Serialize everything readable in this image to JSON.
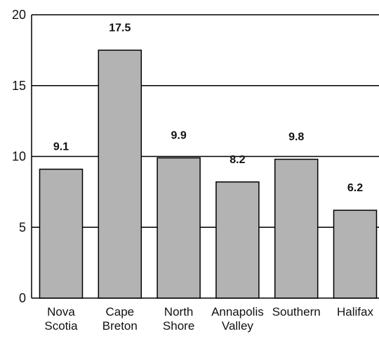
{
  "chart_data": {
    "type": "bar",
    "categories": [
      [
        "Nova",
        "Scotia"
      ],
      [
        "Cape",
        "Breton"
      ],
      [
        "North",
        "Shore"
      ],
      [
        "Annapolis",
        "Valley"
      ],
      [
        "Southern"
      ],
      [
        "Halifax"
      ]
    ],
    "values": [
      9.1,
      17.5,
      9.9,
      8.2,
      9.8,
      6.2
    ],
    "data_labels": [
      "9.1",
      "17.5",
      "9.9",
      "8.2",
      "9.8",
      "6.2"
    ],
    "title": "",
    "xlabel": "",
    "ylabel": "",
    "ylim": [
      0,
      20
    ],
    "yticks": [
      0,
      5,
      10,
      15,
      20
    ],
    "grid": true,
    "bar_color": "#b3b3b3",
    "bar_edge_color": "#000000"
  }
}
